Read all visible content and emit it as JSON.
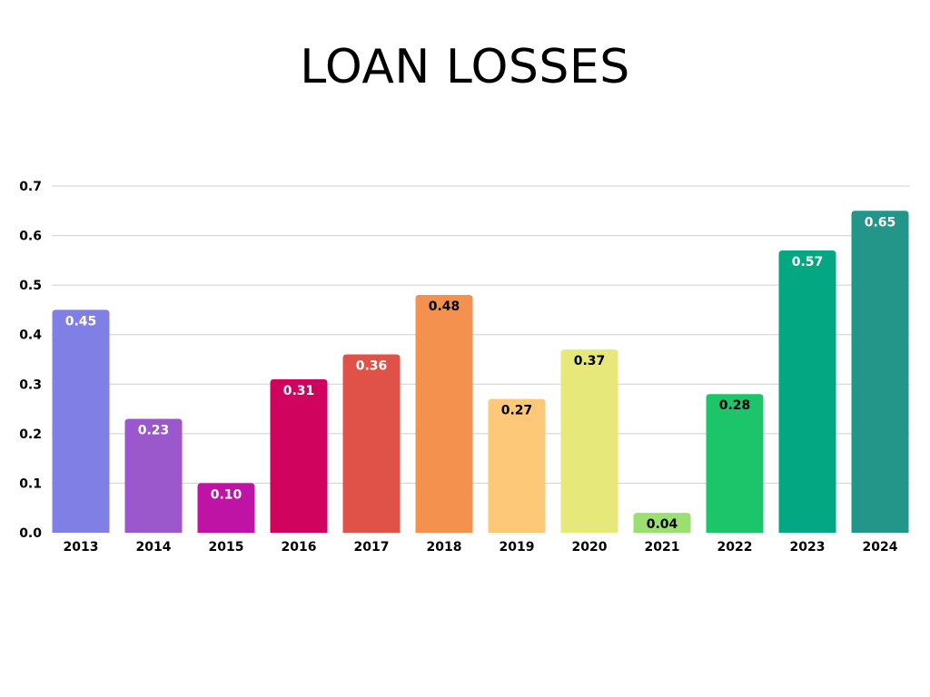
{
  "chart_data": {
    "type": "bar",
    "title": "LOAN LOSSES",
    "xlabel": "",
    "ylabel": "",
    "ylim": [
      0,
      0.7
    ],
    "yticks": [
      "0.0",
      "0.1",
      "0.2",
      "0.3",
      "0.4",
      "0.5",
      "0.6",
      "0.7"
    ],
    "grid": true,
    "categories": [
      "2013",
      "2014",
      "2015",
      "2016",
      "2017",
      "2018",
      "2019",
      "2020",
      "2021",
      "2022",
      "2023",
      "2024"
    ],
    "values": [
      0.45,
      0.23,
      0.1,
      0.31,
      0.36,
      0.48,
      0.27,
      0.37,
      0.04,
      0.28,
      0.57,
      0.65
    ],
    "data_labels": [
      "0.45",
      "0.23",
      "0.10",
      "0.31",
      "0.36",
      "0.48",
      "0.27",
      "0.37",
      "0.04",
      "0.28",
      "0.57",
      "0.65"
    ],
    "colors": [
      "#7f7fe6",
      "#9b58cc",
      "#be13a4",
      "#d0035e",
      "#e05248",
      "#f5914f",
      "#fdc978",
      "#e6e87a",
      "#9ae071",
      "#1cc46a",
      "#03a882",
      "#249589"
    ],
    "label_colors": [
      "#ffffff",
      "#ffffff",
      "#ffffff",
      "#ffffff",
      "#ffffff",
      "#000000",
      "#000000",
      "#000000",
      "#000000",
      "#000000",
      "#ffffff",
      "#ffffff"
    ]
  }
}
